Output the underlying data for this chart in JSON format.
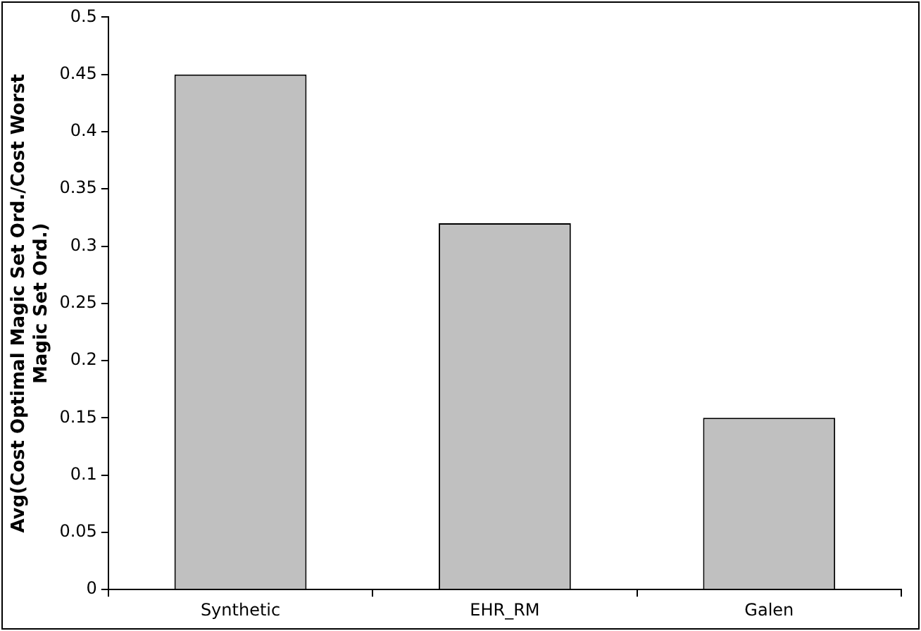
{
  "chart_data": {
    "type": "bar",
    "ylabel": "Avg(Cost Optimal Magic Set Ord./Cost Worst\nMagic Set Ord.)",
    "categories": [
      "Synthetic",
      "EHR_RM",
      "Galen"
    ],
    "values": [
      0.45,
      0.32,
      0.15
    ],
    "color": "#c0c0c0",
    "ylim": [
      0,
      0.5
    ],
    "yticks": [
      0,
      0.05,
      0.1,
      0.15,
      0.2,
      0.25,
      0.3,
      0.35,
      0.4,
      0.45,
      0.5
    ],
    "grid": false,
    "legend": false
  }
}
